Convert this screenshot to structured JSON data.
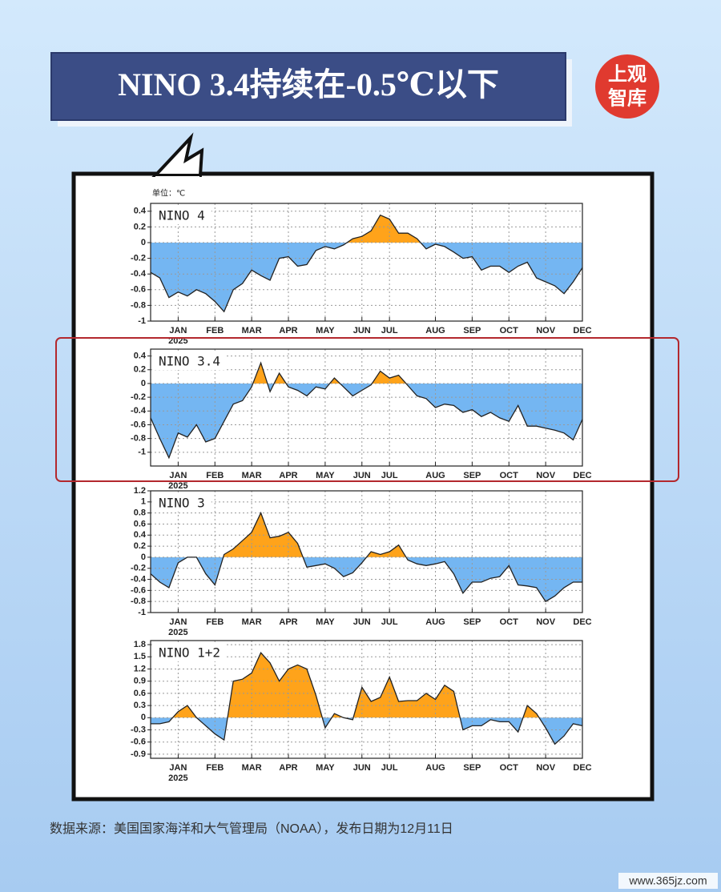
{
  "title": "NINO 3.4持续在-0.5℃以下",
  "logo": [
    "上观",
    "智库"
  ],
  "unit": "单位：℃",
  "source": "数据来源：美国国家海洋和大气管理局（NOAA），发布日期为12月11日",
  "watermark": "www.365jz.com",
  "chart_data": [
    {
      "type": "area",
      "title": "NINO 4",
      "year_label": "2025",
      "categories": [
        null,
        null,
        null,
        "JAN",
        null,
        null,
        null,
        "FEB",
        null,
        null,
        null,
        "MAR",
        null,
        null,
        null,
        "APR",
        null,
        null,
        null,
        "MAY",
        null,
        null,
        null,
        "JUN",
        null,
        null,
        "JUL",
        null,
        null,
        null,
        null,
        "AUG",
        null,
        null,
        null,
        "SEP",
        null,
        null,
        null,
        "OCT",
        null,
        null,
        null,
        "NOV",
        null,
        null,
        null,
        "DEC"
      ],
      "values": [
        -0.38,
        -0.45,
        -0.7,
        -0.63,
        -0.68,
        -0.6,
        -0.65,
        -0.75,
        -0.88,
        -0.6,
        -0.52,
        -0.35,
        -0.42,
        -0.48,
        -0.2,
        -0.18,
        -0.3,
        -0.28,
        -0.1,
        -0.05,
        -0.08,
        -0.03,
        0.05,
        0.08,
        0.15,
        0.35,
        0.3,
        0.12,
        0.12,
        0.05,
        -0.08,
        -0.02,
        -0.05,
        -0.12,
        -0.2,
        -0.18,
        -0.35,
        -0.3,
        -0.3,
        -0.38,
        -0.3,
        -0.25,
        -0.45,
        -0.5,
        -0.55,
        -0.65,
        -0.5,
        -0.32
      ],
      "ylim": [
        -1,
        0.5
      ],
      "yticks": [
        0.4,
        0.2,
        0,
        -0.2,
        -0.4,
        -0.6,
        -0.8,
        -1
      ],
      "color_above": "#ffa31a",
      "color_below": "#74b6f2",
      "grid": true
    },
    {
      "type": "area",
      "title": "NINO 3.4",
      "year_label": "2025",
      "categories": [
        null,
        null,
        null,
        "JAN",
        null,
        null,
        null,
        "FEB",
        null,
        null,
        null,
        "MAR",
        null,
        null,
        null,
        "APR",
        null,
        null,
        null,
        "MAY",
        null,
        null,
        null,
        "JUN",
        null,
        null,
        "JUL",
        null,
        null,
        null,
        null,
        "AUG",
        null,
        null,
        null,
        "SEP",
        null,
        null,
        null,
        "OCT",
        null,
        null,
        null,
        "NOV",
        null,
        null,
        null,
        "DEC"
      ],
      "values": [
        -0.5,
        -0.8,
        -1.08,
        -0.72,
        -0.78,
        -0.6,
        -0.85,
        -0.8,
        -0.55,
        -0.3,
        -0.25,
        -0.05,
        0.3,
        -0.12,
        0.15,
        -0.05,
        -0.1,
        -0.18,
        -0.05,
        -0.08,
        0.08,
        -0.05,
        -0.18,
        -0.1,
        -0.02,
        0.18,
        0.08,
        0.12,
        -0.03,
        -0.18,
        -0.22,
        -0.35,
        -0.3,
        -0.32,
        -0.42,
        -0.38,
        -0.48,
        -0.42,
        -0.5,
        -0.55,
        -0.32,
        -0.62,
        -0.62,
        -0.65,
        -0.68,
        -0.72,
        -0.82,
        -0.52
      ],
      "ylim": [
        -1.2,
        0.5
      ],
      "yticks": [
        0.4,
        0.2,
        0,
        -0.2,
        -0.4,
        -0.6,
        -0.8,
        -1
      ],
      "color_above": "#ffa31a",
      "color_below": "#74b6f2",
      "grid": true
    },
    {
      "type": "area",
      "title": "NINO 3",
      "year_label": "2025",
      "categories": [
        null,
        null,
        null,
        "JAN",
        null,
        null,
        null,
        "FEB",
        null,
        null,
        null,
        "MAR",
        null,
        null,
        null,
        "APR",
        null,
        null,
        null,
        "MAY",
        null,
        null,
        null,
        "JUN",
        null,
        null,
        "JUL",
        null,
        null,
        null,
        null,
        "AUG",
        null,
        null,
        null,
        "SEP",
        null,
        null,
        null,
        "OCT",
        null,
        null,
        null,
        "NOV",
        null,
        null,
        null,
        "DEC"
      ],
      "values": [
        -0.3,
        -0.45,
        -0.55,
        -0.1,
        0.0,
        0.0,
        -0.3,
        -0.5,
        0.05,
        0.15,
        0.3,
        0.45,
        0.8,
        0.35,
        0.38,
        0.45,
        0.25,
        -0.18,
        -0.15,
        -0.12,
        -0.2,
        -0.35,
        -0.28,
        -0.1,
        0.1,
        0.05,
        0.1,
        0.22,
        -0.05,
        -0.12,
        -0.15,
        -0.12,
        -0.08,
        -0.3,
        -0.65,
        -0.45,
        -0.45,
        -0.38,
        -0.35,
        -0.15,
        -0.5,
        -0.52,
        -0.55,
        -0.8,
        -0.7,
        -0.55,
        -0.45,
        -0.45
      ],
      "ylim": [
        -1,
        1.2
      ],
      "yticks": [
        1.2,
        1,
        0.8,
        0.6,
        0.4,
        0.2,
        0,
        -0.2,
        -0.4,
        -0.6,
        -0.8,
        -1
      ],
      "color_above": "#ffa31a",
      "color_below": "#74b6f2",
      "grid": true
    },
    {
      "type": "area",
      "title": "NINO 1+2",
      "year_label": "2025",
      "categories": [
        null,
        null,
        null,
        "JAN",
        null,
        null,
        null,
        "FEB",
        null,
        null,
        null,
        "MAR",
        null,
        null,
        null,
        "APR",
        null,
        null,
        null,
        "MAY",
        null,
        null,
        null,
        "JUN",
        null,
        null,
        "JUL",
        null,
        null,
        null,
        null,
        "AUG",
        null,
        null,
        null,
        "SEP",
        null,
        null,
        null,
        "OCT",
        null,
        null,
        null,
        "NOV",
        null,
        null,
        null,
        "DEC"
      ],
      "values": [
        -0.15,
        -0.15,
        -0.1,
        0.15,
        0.3,
        0.0,
        -0.2,
        -0.4,
        -0.55,
        0.9,
        0.95,
        1.1,
        1.6,
        1.35,
        0.9,
        1.2,
        1.3,
        1.2,
        0.55,
        -0.25,
        0.1,
        0.0,
        -0.05,
        0.75,
        0.4,
        0.5,
        1.0,
        0.4,
        0.42,
        0.42,
        0.6,
        0.45,
        0.8,
        0.65,
        -0.3,
        -0.2,
        -0.2,
        -0.05,
        -0.1,
        -0.1,
        -0.35,
        0.3,
        0.1,
        -0.25,
        -0.65,
        -0.45,
        -0.15,
        -0.2
      ],
      "ylim": [
        -1,
        1.9
      ],
      "yticks": [
        1.8,
        1.5,
        1.2,
        0.9,
        0.6,
        0.3,
        0,
        -0.3,
        -0.6,
        -0.9
      ],
      "color_above": "#ffa31a",
      "color_below": "#74b6f2",
      "grid": true
    }
  ]
}
